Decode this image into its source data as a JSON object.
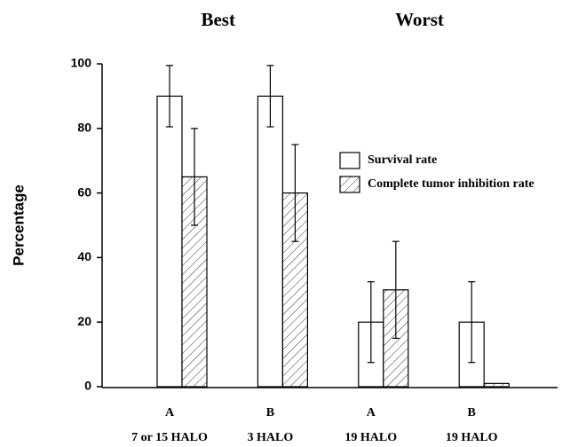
{
  "chart_data": {
    "type": "bar",
    "group_labels": [
      "Best",
      "Worst"
    ],
    "categories": [
      "A",
      "B",
      "A",
      "B"
    ],
    "category_sublabels": [
      "7 or 15 HALO",
      "3 HALO",
      "19 HALO",
      "19 HALO"
    ],
    "y_label": "Percentage",
    "ylim": [
      0,
      100
    ],
    "yticks": [
      0,
      20,
      40,
      60,
      80,
      100
    ],
    "grid": false,
    "legend": "right",
    "series": [
      {
        "name": "Survival rate",
        "color": "#ffffff",
        "pattern": "none",
        "values": [
          90,
          90,
          20,
          20
        ],
        "errors": [
          9.5,
          9.5,
          12.5,
          12.5
        ]
      },
      {
        "name": "Complete tumor inhibition rate",
        "color": "#ffffff",
        "pattern": "hatch",
        "values": [
          65,
          60,
          30,
          1
        ],
        "errors": [
          15,
          15,
          15,
          null
        ]
      }
    ]
  }
}
